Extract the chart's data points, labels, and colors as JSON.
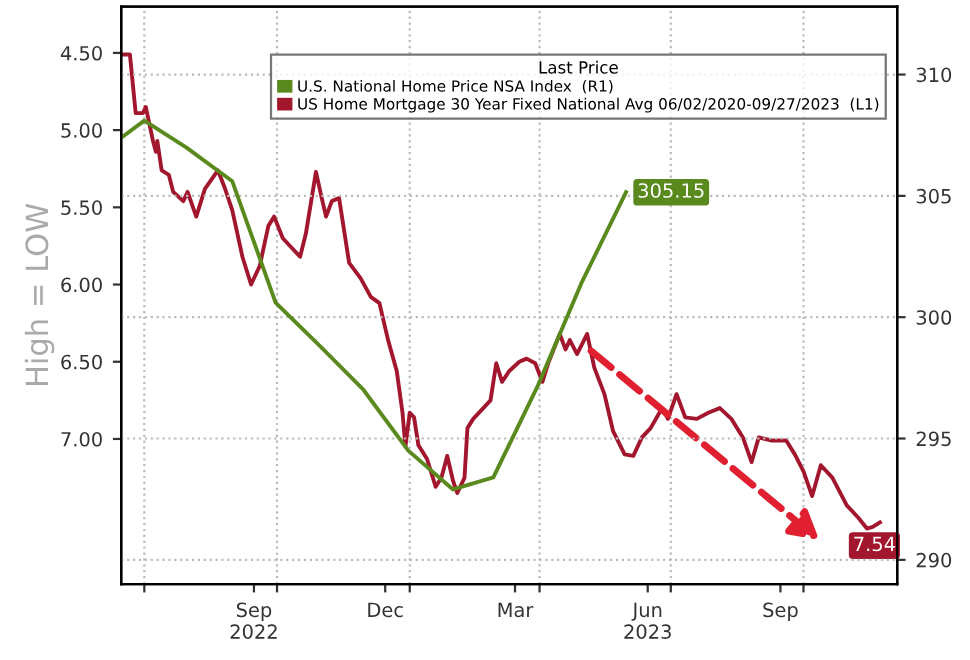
{
  "chart_data": {
    "type": "line",
    "ylabel": "High = LOW",
    "legend_title": "Last Price",
    "legend": "top right",
    "grid": true,
    "line_style": "solid",
    "xlim": [
      "2022-06-15",
      "2023-12-05"
    ],
    "xticks": [
      {
        "value": "2022-07-01",
        "label": null
      },
      {
        "value": "2022-09-15",
        "label": "Sep\n2022"
      },
      {
        "value": "2022-10-01",
        "label": null
      },
      {
        "value": "2022-12-15",
        "label": "Dec"
      },
      {
        "value": "2023-01-01",
        "label": null
      },
      {
        "value": "2023-03-15",
        "label": "Mar"
      },
      {
        "value": "2023-04-01",
        "label": null
      },
      {
        "value": "2023-06-15",
        "label": "Jun\n2023"
      },
      {
        "value": "2023-07-01",
        "label": null
      },
      {
        "value": "2023-09-15",
        "label": "Sep"
      },
      {
        "value": "2023-10-01",
        "label": null
      }
    ],
    "ylim": [
      7.94,
      4.2
    ],
    "yticks": [
      {
        "value": 4.5,
        "label": "4.50"
      },
      {
        "value": 5.0,
        "label": "5.00"
      },
      {
        "value": 5.5,
        "label": "5.50"
      },
      {
        "value": 6.0,
        "label": "6.00"
      },
      {
        "value": 6.5,
        "label": "6.50"
      },
      {
        "value": 7.0,
        "label": "7.00"
      }
    ],
    "y2lim": [
      289,
      312.8
    ],
    "y2ticks": [
      290,
      295,
      300,
      305,
      310
    ],
    "series": [
      {
        "name": "U.S. National Home Price NSA Index  (R1)",
        "color": "#5a8a1e",
        "axis": "y2",
        "x": [
          "2022-06-15",
          "2022-07-01",
          "2022-07-30",
          "2022-08-31",
          "2022-09-30",
          "2022-10-31",
          "2022-11-30",
          "2022-12-31",
          "2023-01-31",
          "2023-02-28",
          "2023-03-31",
          "2023-04-30",
          "2023-05-31"
        ],
        "values": [
          307.4,
          308.1,
          307.0,
          305.6,
          300.6,
          298.8,
          297.0,
          294.5,
          292.9,
          293.4,
          297.2,
          301.4,
          305.15
        ],
        "value_labels": [
          null,
          null,
          null,
          null,
          null,
          null,
          null,
          null,
          null,
          null,
          null,
          null,
          "305.15"
        ]
      },
      {
        "name": "US Home Mortgage 30 Year Fixed National Avg 06/02/2020-09/27/2023  (L1)",
        "color": "#a3172e",
        "axis": "y",
        "x": [
          "2022-06-15",
          "2022-06-21",
          "2022-06-25",
          "2022-06-30",
          "2022-07-02",
          "2022-07-07",
          "2022-07-09",
          "2022-07-10",
          "2022-07-13",
          "2022-07-18",
          "2022-07-21",
          "2022-07-28",
          "2022-07-31",
          "2022-08-06",
          "2022-08-12",
          "2022-08-21",
          "2022-08-26",
          "2022-08-31",
          "2022-09-07",
          "2022-09-13",
          "2022-09-19",
          "2022-09-25",
          "2022-09-29",
          "2022-10-05",
          "2022-10-17",
          "2022-10-21",
          "2022-10-28",
          "2022-11-01",
          "2022-11-04",
          "2022-11-08",
          "2022-11-13",
          "2022-11-20",
          "2022-11-28",
          "2022-12-05",
          "2022-12-11",
          "2022-12-17",
          "2022-12-23",
          "2022-12-27",
          "2022-12-29",
          "2023-01-01",
          "2023-01-04",
          "2023-01-07",
          "2023-01-13",
          "2023-01-19",
          "2023-01-23",
          "2023-01-27",
          "2023-01-31",
          "2023-02-03",
          "2023-02-08",
          "2023-02-10",
          "2023-02-14",
          "2023-02-21",
          "2023-02-26",
          "2023-03-02",
          "2023-03-06",
          "2023-03-11",
          "2023-03-18",
          "2023-03-23",
          "2023-03-29",
          "2023-04-03",
          "2023-04-07",
          "2023-04-15",
          "2023-04-19",
          "2023-04-22",
          "2023-04-27",
          "2023-05-04",
          "2023-05-09",
          "2023-05-16",
          "2023-05-22",
          "2023-05-30",
          "2023-06-05",
          "2023-06-11",
          "2023-06-17",
          "2023-06-25",
          "2023-06-29",
          "2023-07-05",
          "2023-07-11",
          "2023-07-19",
          "2023-07-27",
          "2023-08-04",
          "2023-08-12",
          "2023-08-20",
          "2023-08-26",
          "2023-08-31",
          "2023-09-09",
          "2023-09-19",
          "2023-09-25",
          "2023-10-01",
          "2023-10-07",
          "2023-10-13",
          "2023-10-21",
          "2023-10-31",
          "2023-11-08",
          "2023-11-14",
          "2023-11-18",
          "2023-11-23"
        ],
        "values": [
          4.51,
          4.51,
          4.89,
          4.89,
          4.85,
          5.07,
          5.14,
          5.07,
          5.26,
          5.29,
          5.4,
          5.46,
          5.4,
          5.56,
          5.38,
          5.26,
          5.38,
          5.52,
          5.82,
          6.0,
          5.88,
          5.62,
          5.56,
          5.7,
          5.82,
          5.67,
          5.27,
          5.44,
          5.56,
          5.46,
          5.44,
          5.86,
          5.96,
          6.08,
          6.12,
          6.36,
          6.56,
          6.83,
          7.05,
          6.83,
          6.86,
          7.04,
          7.13,
          7.31,
          7.25,
          7.11,
          7.27,
          7.35,
          7.25,
          6.93,
          6.87,
          6.8,
          6.75,
          6.51,
          6.63,
          6.56,
          6.5,
          6.48,
          6.51,
          6.63,
          6.51,
          6.32,
          6.42,
          6.36,
          6.45,
          6.32,
          6.54,
          6.71,
          6.95,
          7.1,
          7.11,
          6.99,
          6.93,
          6.8,
          6.87,
          6.71,
          6.86,
          6.87,
          6.83,
          6.8,
          6.87,
          6.99,
          7.15,
          6.99,
          7.01,
          7.01,
          7.1,
          7.21,
          7.37,
          7.17,
          7.25,
          7.43,
          7.51,
          7.58,
          7.57,
          7.54
        ],
        "value_labels": [
          null,
          null,
          null,
          null,
          null,
          null,
          null,
          null,
          null,
          null,
          null,
          null,
          null,
          null,
          null,
          null,
          null,
          null,
          null,
          null,
          null,
          null,
          null,
          null,
          null,
          null,
          null,
          null,
          null,
          null,
          null,
          null,
          null,
          null,
          null,
          null,
          null,
          null,
          null,
          null,
          null,
          null,
          null,
          null,
          null,
          null,
          null,
          null,
          null,
          null,
          null,
          null,
          null,
          null,
          null,
          null,
          null,
          null,
          null,
          null,
          null,
          null,
          null,
          null,
          null,
          null,
          null,
          null,
          null,
          null,
          null,
          null,
          null,
          null,
          null,
          null,
          null,
          null,
          null,
          null,
          null,
          null,
          null,
          null,
          null,
          null,
          null,
          null,
          null,
          null,
          null,
          null,
          null,
          null,
          null,
          "7.54"
        ]
      }
    ]
  }
}
